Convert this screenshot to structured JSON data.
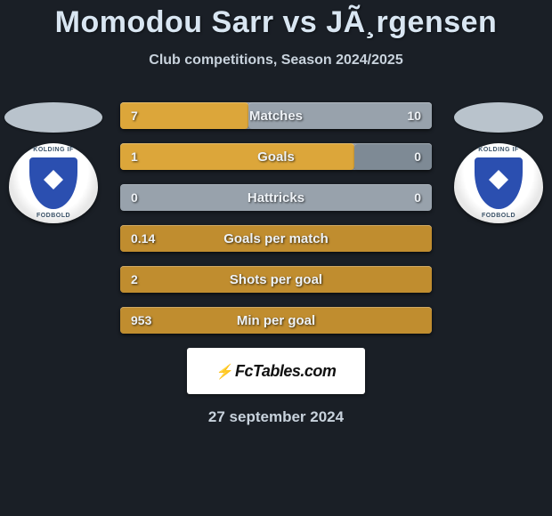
{
  "title": "Momodou Sarr vs JÃ¸rgensen",
  "subtitle": "Club competitions, Season 2024/2025",
  "date": "27 september 2024",
  "footer_brand": "FcTables.com",
  "colors": {
    "background": "#1a1f26",
    "bar_base": "#98a2ac",
    "left_fill": "#dca63a",
    "center_fill": "#c08d2f",
    "neutral_fill": "#7e8a95",
    "text_light": "#eef2f6",
    "title_color": "#d9e6f2"
  },
  "badge": {
    "top_text": "KOLDING IF",
    "bottom_text": "FODBOLD",
    "shield_color": "#2b4fb0"
  },
  "stats": [
    {
      "label": "Matches",
      "left_value": "7",
      "right_value": "10",
      "left_pct": 41,
      "right_pct": 59,
      "left_color": "#dca63a",
      "right_color": "#98a2ac"
    },
    {
      "label": "Goals",
      "left_value": "1",
      "right_value": "0",
      "left_pct": 75,
      "right_pct": 25,
      "left_color": "#dca63a",
      "right_color": "#7e8a95"
    },
    {
      "label": "Hattricks",
      "left_value": "0",
      "right_value": "0",
      "left_pct": 0,
      "right_pct": 0,
      "left_color": "#98a2ac",
      "right_color": "#98a2ac"
    },
    {
      "label": "Goals per match",
      "left_value": "0.14",
      "right_value": "",
      "left_pct": 100,
      "right_pct": 0,
      "left_color": "#c08d2f",
      "right_color": "#98a2ac"
    },
    {
      "label": "Shots per goal",
      "left_value": "2",
      "right_value": "",
      "left_pct": 100,
      "right_pct": 0,
      "left_color": "#c08d2f",
      "right_color": "#98a2ac"
    },
    {
      "label": "Min per goal",
      "left_value": "953",
      "right_value": "",
      "left_pct": 100,
      "right_pct": 0,
      "left_color": "#c08d2f",
      "right_color": "#98a2ac"
    }
  ]
}
